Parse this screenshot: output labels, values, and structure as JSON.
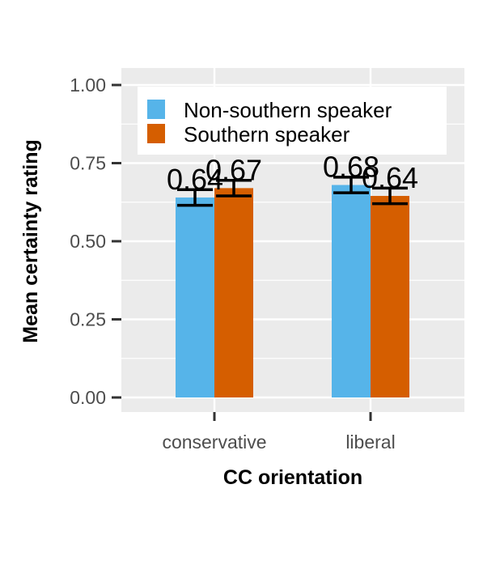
{
  "chart_data": {
    "type": "bar",
    "xlabel": "CC orientation",
    "ylabel": "Mean certainty rating",
    "categories": [
      "conservative",
      "liberal"
    ],
    "ylim": [
      0,
      1.0
    ],
    "yticks": [
      "0.00",
      "0.25",
      "0.50",
      "0.75",
      "1.00"
    ],
    "ytick_values": [
      0,
      0.25,
      0.5,
      0.75,
      1.0
    ],
    "grid": true,
    "legend_position": "top",
    "series": [
      {
        "name": "Non-southern speaker",
        "color": "#56B4E9",
        "values": [
          0.64,
          0.68
        ],
        "error_low": [
          0.615,
          0.655
        ],
        "error_high": [
          0.665,
          0.705
        ],
        "labels": [
          "0.64",
          "0.68"
        ]
      },
      {
        "name": "Southern speaker",
        "color": "#D55E00",
        "values": [
          0.67,
          0.645
        ],
        "error_low": [
          0.645,
          0.62
        ],
        "error_high": [
          0.695,
          0.67
        ],
        "labels": [
          "0.67",
          "0.64"
        ]
      }
    ]
  }
}
